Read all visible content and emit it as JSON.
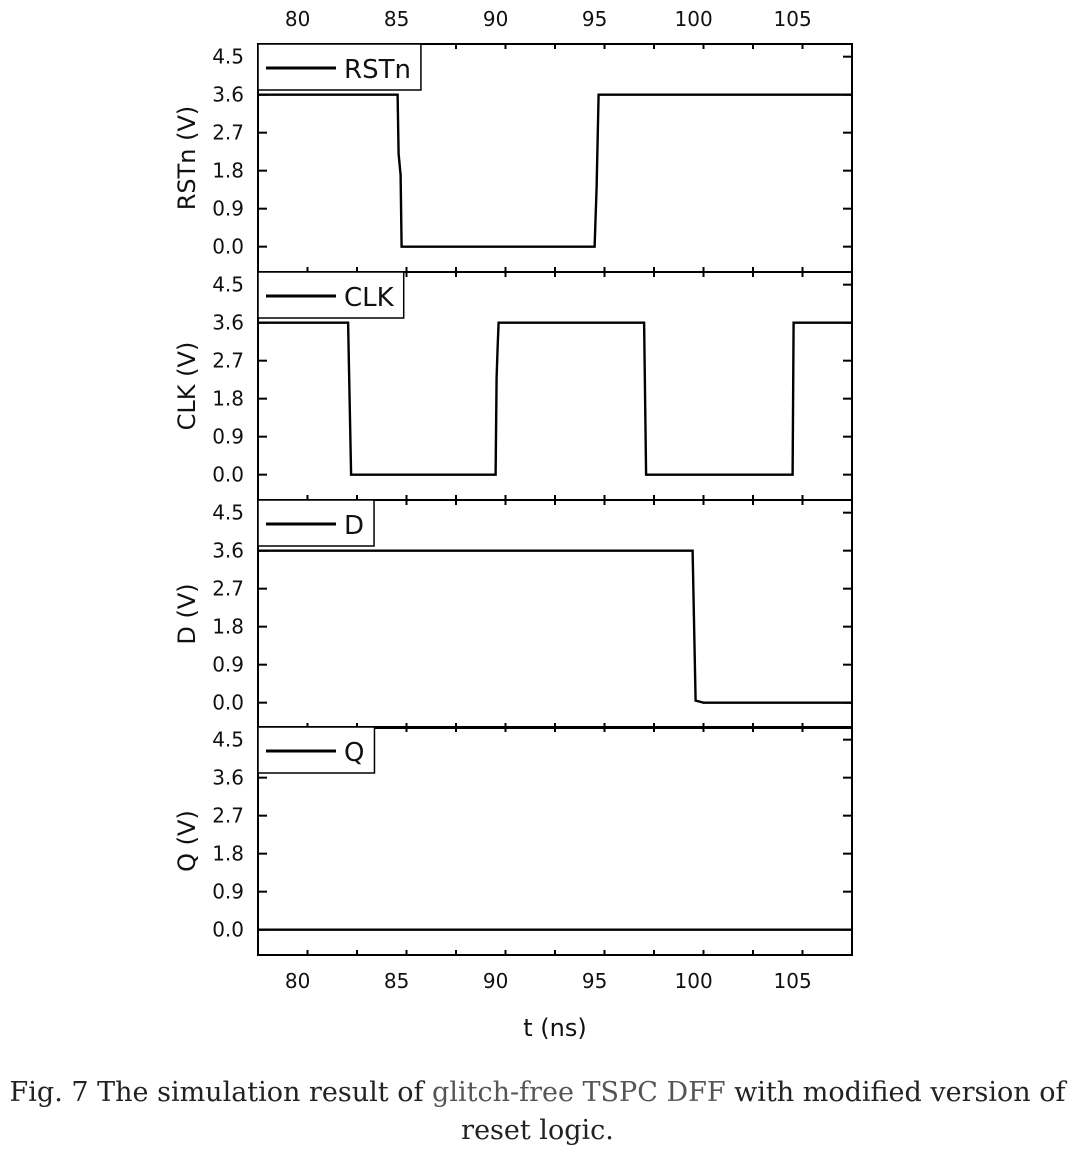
{
  "chart_data": {
    "type": "line",
    "xlabel": "t (ns)",
    "xlim": [
      78,
      108
    ],
    "x_ticks": [
      80,
      85,
      90,
      95,
      100,
      105
    ],
    "y_ticks": [
      "0.0",
      "0.9",
      "1.8",
      "2.7",
      "3.6",
      "4.5"
    ],
    "ylim": [
      -0.6,
      4.8
    ],
    "panels": [
      {
        "name": "RSTn",
        "ylabel": "RSTn (V)",
        "legend": "RSTn",
        "series": {
          "x": [
            78,
            85.05,
            85.1,
            85.2,
            85.25,
            94.95,
            95.0,
            95.1,
            95.2,
            108
          ],
          "y": [
            3.6,
            3.6,
            2.2,
            1.7,
            0.0,
            0.0,
            0.0,
            1.4,
            3.6,
            3.6
          ]
        }
      },
      {
        "name": "CLK",
        "ylabel": "CLK (V)",
        "legend": "CLK",
        "series": {
          "x": [
            78,
            82.55,
            82.7,
            90.0,
            90.05,
            90.1,
            90.15,
            97.5,
            97.6,
            105.0,
            105.05,
            108
          ],
          "y": [
            3.6,
            3.6,
            0.0,
            0.0,
            2.3,
            3.0,
            3.6,
            3.6,
            0.0,
            0.0,
            3.6,
            3.6
          ]
        }
      },
      {
        "name": "D",
        "ylabel": "D (V)",
        "legend": "D",
        "series": {
          "x": [
            78,
            99.95,
            100.1,
            100.5,
            108
          ],
          "y": [
            3.6,
            3.6,
            0.05,
            0.0,
            0.0
          ]
        }
      },
      {
        "name": "Q",
        "ylabel": "Q (V)",
        "legend": "Q",
        "series": {
          "x": [
            78,
            108
          ],
          "y": [
            0.0,
            0.0
          ]
        }
      }
    ]
  },
  "caption": {
    "prefix": "Fig. 7 The simulation result of ",
    "highlight": "glitch-free TSPC DFF",
    "suffix": " with modified version of reset logic."
  }
}
